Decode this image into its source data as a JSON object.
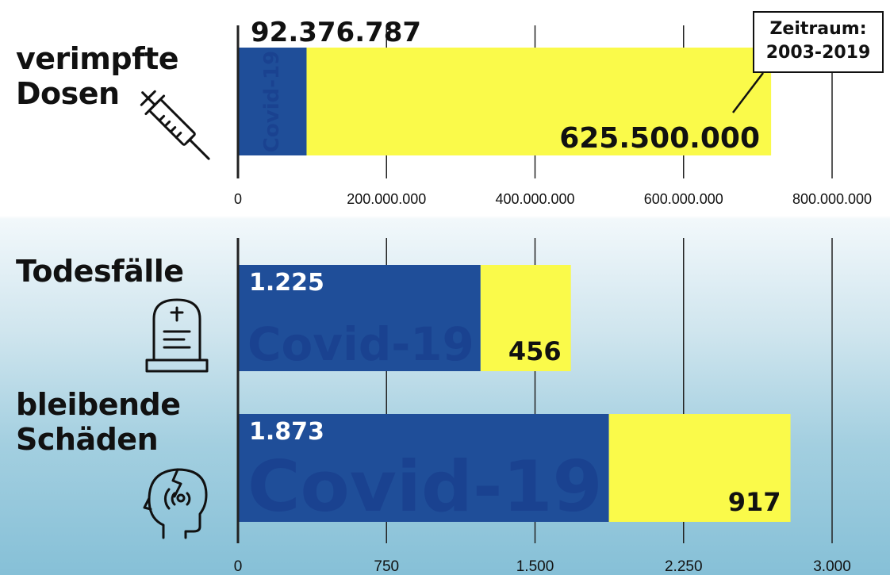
{
  "colors": {
    "covid": "#1f4e99",
    "other": "#fafa4a",
    "grid": "#222222",
    "text": "#111111",
    "watermark": "#1a4290"
  },
  "labels": {
    "doses": "verimpfte\nDosen",
    "deaths": "Todesfälle",
    "damage": "bleibende\nSchäden"
  },
  "note": "Zeitraum:\n2003-2019",
  "icons": {
    "doses": "syringe-icon",
    "deaths": "gravestone-icon",
    "damage": "head-injury-icon"
  },
  "chart_data": [
    {
      "type": "bar",
      "orientation": "horizontal",
      "stacked": true,
      "categories": [
        "verimpfte Dosen"
      ],
      "series": [
        {
          "name": "Covid-19",
          "values": [
            92376787
          ]
        },
        {
          "values": [
            625500000
          ]
        }
      ],
      "data_labels": [
        "92.376.787",
        "625.500.000"
      ],
      "xlim": [
        0,
        800000000
      ],
      "ticks": [
        0,
        200000000,
        400000000,
        600000000,
        800000000
      ],
      "tick_labels": [
        "0",
        "200.000.000",
        "400.000.000",
        "600.000.000",
        "800.000.000"
      ],
      "grid": true
    },
    {
      "type": "bar",
      "orientation": "horizontal",
      "stacked": true,
      "categories": [
        "Todesfälle",
        "bleibende Schäden"
      ],
      "series": [
        {
          "name": "Covid-19",
          "values": [
            1225,
            1873
          ]
        },
        {
          "values": [
            456,
            917
          ]
        }
      ],
      "data_labels": [
        [
          "1.225",
          "456"
        ],
        [
          "1.873",
          "917"
        ]
      ],
      "xlim": [
        0,
        3000
      ],
      "ticks": [
        0,
        750,
        1500,
        2250,
        3000
      ],
      "tick_labels": [
        "0",
        "750",
        "1.500",
        "2.250",
        "3.000"
      ],
      "grid": true
    }
  ]
}
